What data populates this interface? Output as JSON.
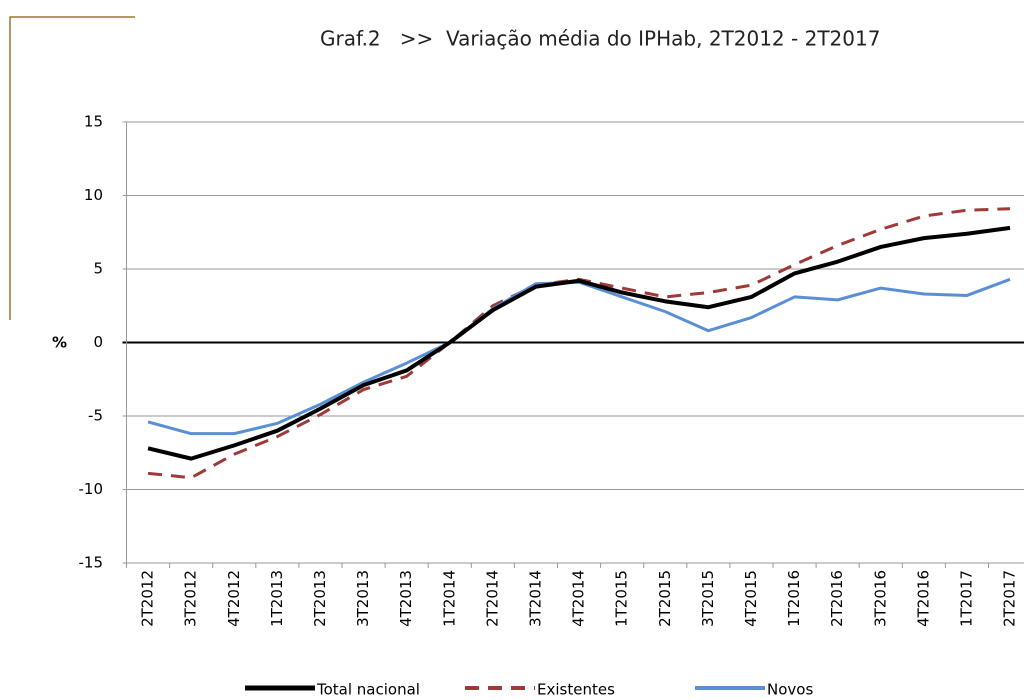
{
  "chart_data": {
    "type": "line",
    "title": "Graf.2   >>  Variação média do IPHab, 2T2012 - 2T2017",
    "y_label": "%",
    "categories": [
      "2T2012",
      "3T2012",
      "4T2012",
      "1T2013",
      "2T2013",
      "3T2013",
      "4T2013",
      "1T2014",
      "2T2014",
      "3T2014",
      "4T2014",
      "1T2015",
      "2T2015",
      "3T2015",
      "4T2015",
      "1T2016",
      "2T2016",
      "3T2016",
      "4T2016",
      "1T2017",
      "2T2017"
    ],
    "series": [
      {
        "name": "Total nacional",
        "color": "#000000",
        "dash": false,
        "values": [
          -7.2,
          -7.9,
          -7.0,
          -6.0,
          -4.5,
          -2.9,
          -1.9,
          0,
          2.2,
          3.8,
          4.2,
          3.4,
          2.8,
          2.4,
          3.1,
          4.7,
          5.5,
          6.5,
          7.1,
          7.4,
          7.8
        ]
      },
      {
        "name": "Existentes",
        "color": "#9e3a38",
        "dash": true,
        "values": [
          -8.9,
          -9.2,
          -7.6,
          -6.4,
          -4.9,
          -3.2,
          -2.3,
          0,
          2.5,
          3.9,
          4.3,
          3.7,
          3.1,
          3.4,
          3.9,
          5.3,
          6.6,
          7.7,
          8.6,
          9.0,
          9.1
        ]
      },
      {
        "name": "Novos",
        "color": "#5b8fd4",
        "dash": false,
        "values": [
          -5.4,
          -6.2,
          -6.2,
          -5.5,
          -4.2,
          -2.7,
          -1.4,
          0,
          2.3,
          4.0,
          4.1,
          3.1,
          2.1,
          0.8,
          1.7,
          3.1,
          2.9,
          3.7,
          3.3,
          3.2,
          4.3
        ]
      }
    ],
    "ylim": [
      -15,
      15
    ],
    "yticks": [
      -15,
      -10,
      -5,
      0,
      5,
      10,
      15
    ],
    "grid": true
  }
}
